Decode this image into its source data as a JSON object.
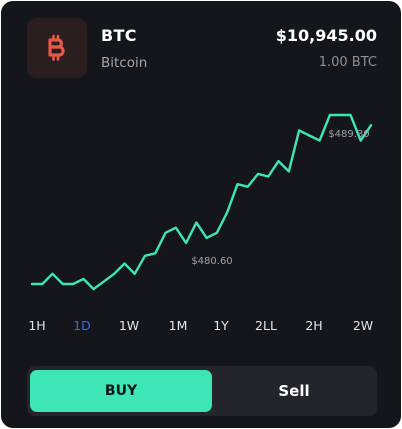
{
  "asset": {
    "ticker": "BTC",
    "name": "Bitcoin",
    "price": "$10,945.00",
    "holding": "1.00 BTC",
    "icon": "bitcoin-icon",
    "icon_color": "#e8574a"
  },
  "chart_data": {
    "type": "line",
    "values": [
      0,
      0,
      1.6,
      0,
      0,
      0.8,
      -0.8,
      0.4,
      1.6,
      3.2,
      1.6,
      4.4,
      4.8,
      8,
      8.8,
      6.4,
      9.6,
      7.2,
      8,
      11.2,
      15.6,
      15.2,
      17.2,
      16.8,
      19.2,
      17.6,
      24,
      23.2,
      22.4,
      26.4,
      26.4,
      26.4,
      22.4,
      24.8
    ],
    "low_label": "$480.60",
    "high_label": "$489.30",
    "line_color": "#3ee6b7",
    "grid": false
  },
  "ranges": {
    "active": "1D",
    "items": [
      "1H",
      "1D",
      "1W",
      "1M",
      "1Y",
      "2LL",
      "2H",
      "2W"
    ]
  },
  "actions": {
    "buy_label": "BUY",
    "sell_label": "Sell"
  },
  "colors": {
    "accent": "#3ee6b7",
    "active_range": "#2f6fe6",
    "card": "#15161b"
  }
}
